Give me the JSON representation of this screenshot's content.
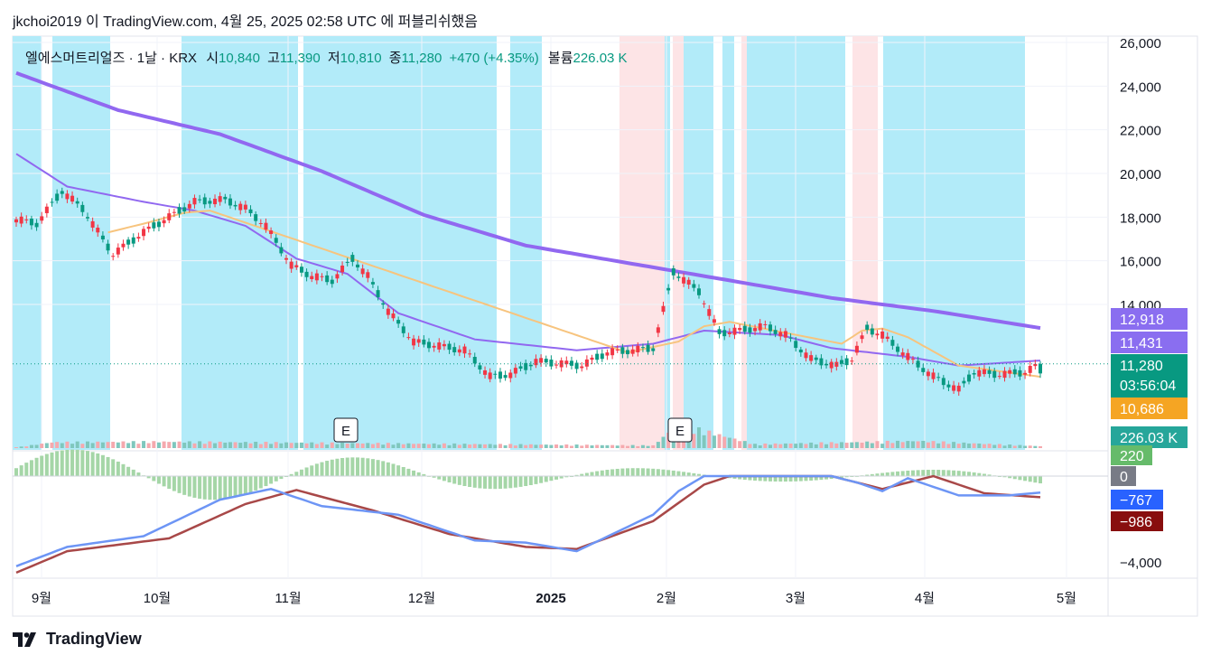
{
  "header": {
    "author": "jkchoi2019",
    "particle": "이",
    "site": "TradingView.com,",
    "date": "4월 25, 2025 02:58 UTC",
    "suffix": "에 퍼블리쉬했음"
  },
  "legend": {
    "symbol": "엘에스머트리얼즈 · 1날 · KRX",
    "open_label": "시",
    "open": "10,840",
    "high_label": "고",
    "high": "11,390",
    "low_label": "저",
    "low": "10,810",
    "close_label": "종",
    "close": "11,280",
    "change": "+470 (+4.35%)",
    "volume_label": "볼륨",
    "volume": "226.03 K"
  },
  "price_axis": {
    "ticks": [
      "26,000",
      "24,000",
      "22,000",
      "20,000",
      "18,000",
      "16,000",
      "14,000"
    ],
    "badges": [
      {
        "text": "12,918",
        "color": "#8a6ef0"
      },
      {
        "text": "11,431",
        "color": "#8a6ef0"
      },
      {
        "text": "11,280",
        "sub": "03:56:04",
        "color": "#089981"
      },
      {
        "text": "10,686",
        "color": "#f5a523"
      },
      {
        "text": "226.03 K",
        "color": "#26a69a"
      }
    ]
  },
  "macd_axis": {
    "ticks": [
      "0",
      "−4,000"
    ],
    "badges": [
      {
        "text": "220",
        "color": "#66bb6a"
      },
      {
        "text": "0",
        "color": "#787b86"
      },
      {
        "text": "−767",
        "color": "#2962ff"
      },
      {
        "text": "−986",
        "color": "#880e0e"
      }
    ]
  },
  "time_axis": [
    "9월",
    "10월",
    "11월",
    "12월",
    "2025",
    "2월",
    "3월",
    "4월",
    "5월"
  ],
  "earnings_markers": [
    "E",
    "E"
  ],
  "footer": {
    "brand": "TradingView"
  },
  "colors": {
    "up": "#089981",
    "down": "#f23645",
    "bg_blue": "#b2ebf9",
    "bg_pink": "#fde4e6",
    "ma_long": "#9168f0",
    "ma_short": "#f7c47e",
    "macd": "#6d95f5",
    "signal": "#a84848"
  },
  "chart_data": {
    "type": "candlestick",
    "symbol": "엘에스머트리얼즈",
    "interval": "1날",
    "exchange": "KRX",
    "x": [
      "9월",
      "10월",
      "11월",
      "12월",
      "2025",
      "2월",
      "3월",
      "4월",
      "5월"
    ],
    "ylim": [
      10000,
      26000
    ],
    "last_ohlc": {
      "open": 10840,
      "high": 11390,
      "low": 10810,
      "close": 11280,
      "change": 470,
      "change_pct": 4.35,
      "volume": "226.03 K"
    },
    "price_path": [
      [
        0,
        17900
      ],
      [
        4,
        17700
      ],
      [
        9,
        19200
      ],
      [
        13,
        18400
      ],
      [
        19,
        16300
      ],
      [
        25,
        17300
      ],
      [
        30,
        18000
      ],
      [
        35,
        18700
      ],
      [
        41,
        18800
      ],
      [
        45,
        18400
      ],
      [
        49,
        17600
      ],
      [
        54,
        15800
      ],
      [
        58,
        15300
      ],
      [
        62,
        15100
      ],
      [
        66,
        16100
      ],
      [
        69,
        15300
      ],
      [
        73,
        13700
      ],
      [
        78,
        12300
      ],
      [
        83,
        12100
      ],
      [
        88,
        11900
      ],
      [
        93,
        10700
      ],
      [
        97,
        10800
      ],
      [
        102,
        11400
      ],
      [
        107,
        11300
      ],
      [
        111,
        11200
      ],
      [
        116,
        11800
      ],
      [
        121,
        11900
      ],
      [
        125,
        12000
      ],
      [
        129,
        15500
      ],
      [
        134,
        14600
      ],
      [
        138,
        12700
      ],
      [
        142,
        12800
      ],
      [
        147,
        13000
      ],
      [
        151,
        12600
      ],
      [
        156,
        11500
      ],
      [
        161,
        11200
      ],
      [
        164,
        11500
      ],
      [
        167,
        12900
      ],
      [
        170,
        12600
      ],
      [
        175,
        11600
      ],
      [
        180,
        10700
      ],
      [
        185,
        10100
      ],
      [
        188,
        10900
      ],
      [
        193,
        10800
      ],
      [
        198,
        10900
      ],
      [
        201,
        11280
      ]
    ],
    "ma_long_path": [
      [
        0,
        24600
      ],
      [
        20,
        22900
      ],
      [
        40,
        21800
      ],
      [
        60,
        20100
      ],
      [
        80,
        18100
      ],
      [
        100,
        16700
      ],
      [
        120,
        15900
      ],
      [
        140,
        15100
      ],
      [
        160,
        14300
      ],
      [
        180,
        13700
      ],
      [
        201,
        12918
      ]
    ],
    "ma_short_path": [
      [
        0,
        20900
      ],
      [
        10,
        19400
      ],
      [
        25,
        18700
      ],
      [
        35,
        18300
      ],
      [
        45,
        17600
      ],
      [
        55,
        16100
      ],
      [
        65,
        15400
      ],
      [
        75,
        13600
      ],
      [
        90,
        12400
      ],
      [
        110,
        11900
      ],
      [
        125,
        12200
      ],
      [
        135,
        12800
      ],
      [
        150,
        12600
      ],
      [
        160,
        12000
      ],
      [
        175,
        11600
      ],
      [
        185,
        11200
      ],
      [
        201,
        11431
      ]
    ],
    "ma_fast_path": [
      [
        18,
        17300
      ],
      [
        25,
        17700
      ],
      [
        33,
        18200
      ],
      [
        38,
        18300
      ],
      [
        120,
        11800
      ],
      [
        130,
        12300
      ],
      [
        135,
        13000
      ],
      [
        140,
        13200
      ],
      [
        162,
        12200
      ],
      [
        166,
        12800
      ],
      [
        170,
        12900
      ],
      [
        175,
        12500
      ],
      [
        185,
        11200
      ],
      [
        201,
        10686
      ]
    ],
    "volume_path": [
      [
        0,
        0.1
      ],
      [
        7,
        0.9
      ],
      [
        28,
        1.0
      ],
      [
        125,
        0.4
      ],
      [
        130,
        3.7
      ],
      [
        145,
        0.6
      ],
      [
        177,
        1.1
      ],
      [
        201,
        0.3
      ]
    ],
    "macd": {
      "macd_value": -767,
      "signal_value": -986,
      "histogram_value": 220,
      "ylim": [
        -4500,
        1500
      ],
      "ticks": [
        0,
        -4000
      ]
    },
    "earnings_markers": [
      {
        "label": "E",
        "x": "11월"
      },
      {
        "label": "E",
        "x": "2월"
      }
    ]
  }
}
